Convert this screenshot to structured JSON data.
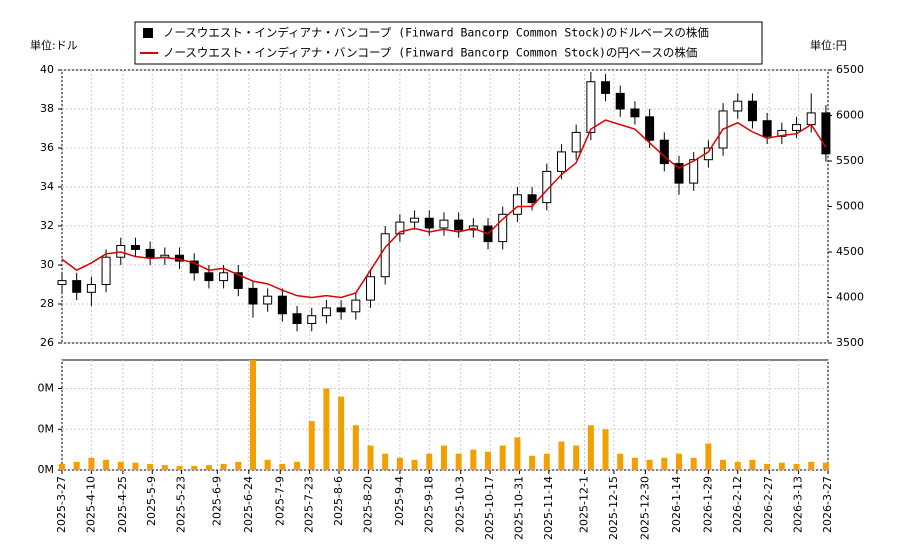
{
  "chart_data": [
    {
      "type": "candlestick",
      "name": "ノースウエスト・インディアナ・バンコープ (Finward Bancorp Common Stock)のドルベースの株価",
      "color": "#000000",
      "y_label": "単位:ドル",
      "y2_label": "単位:円",
      "x": [
        "2025-3-27",
        "2025-4-3",
        "2025-4-10",
        "2025-4-17",
        "2025-4-24",
        "2025-5-1",
        "2025-5-8",
        "2025-5-15",
        "2025-5-22",
        "2025-5-29",
        "2025-6-5",
        "2025-6-12",
        "2025-6-19",
        "2025-6-26",
        "2025-7-3",
        "2025-7-10",
        "2025-7-17",
        "2025-7-24",
        "2025-7-31",
        "2025-8-7",
        "2025-8-14",
        "2025-8-21",
        "2025-8-28",
        "2025-9-4",
        "2025-9-11",
        "2025-9-18",
        "2025-9-25",
        "2025-10-2",
        "2025-10-9",
        "2025-10-16",
        "2025-10-23",
        "2025-10-30",
        "2025-11-6",
        "2025-11-13",
        "2025-11-20",
        "2025-11-27",
        "2025-12-4",
        "2025-12-11",
        "2025-12-18",
        "2025-12-25",
        "2026-1-1",
        "2026-1-8",
        "2026-1-15",
        "2026-1-22",
        "2026-1-29",
        "2026-2-5",
        "2026-2-12",
        "2026-2-19",
        "2026-2-26",
        "2026-3-5",
        "2026-3-12",
        "2026-3-19",
        "2026-3-26"
      ],
      "open": [
        29.0,
        29.2,
        28.6,
        29.0,
        30.4,
        31.0,
        30.8,
        30.4,
        30.5,
        30.2,
        29.6,
        29.2,
        29.6,
        28.8,
        28.0,
        28.4,
        27.5,
        27.0,
        27.4,
        27.8,
        27.6,
        28.2,
        29.4,
        31.6,
        32.2,
        32.4,
        31.9,
        32.3,
        31.8,
        32.0,
        31.2,
        32.6,
        33.6,
        33.2,
        34.8,
        35.8,
        36.8,
        39.4,
        38.8,
        38.0,
        37.6,
        36.4,
        35.2,
        34.2,
        35.4,
        36.0,
        37.9,
        38.4,
        37.4,
        36.6,
        36.9,
        37.2,
        37.8
      ],
      "high": [
        29.6,
        29.6,
        29.4,
        30.8,
        31.4,
        31.4,
        31.2,
        30.9,
        30.9,
        30.6,
        30.0,
        30.0,
        30.0,
        29.2,
        28.8,
        28.8,
        27.9,
        27.8,
        28.2,
        28.2,
        28.6,
        29.8,
        32.0,
        32.6,
        32.8,
        32.8,
        32.7,
        32.7,
        32.4,
        32.4,
        33.0,
        34.0,
        34.0,
        35.2,
        36.2,
        37.2,
        39.9,
        39.8,
        39.2,
        38.4,
        38.0,
        36.8,
        35.6,
        35.8,
        36.4,
        38.3,
        38.8,
        38.8,
        37.8,
        37.3,
        37.6,
        38.8,
        38.2
      ],
      "low": [
        28.6,
        28.2,
        27.9,
        28.6,
        30.0,
        30.4,
        30.0,
        30.0,
        29.8,
        29.2,
        28.8,
        28.8,
        28.4,
        27.3,
        27.6,
        27.1,
        26.6,
        26.6,
        27.0,
        27.2,
        27.2,
        27.8,
        29.0,
        31.2,
        31.8,
        31.5,
        31.5,
        31.4,
        31.4,
        30.8,
        30.8,
        32.2,
        32.8,
        32.8,
        34.4,
        35.4,
        36.4,
        38.4,
        37.6,
        37.2,
        36.0,
        34.8,
        33.6,
        33.8,
        35.0,
        35.6,
        37.5,
        37.0,
        36.2,
        36.2,
        36.5,
        36.8,
        35.3
      ],
      "close": [
        29.2,
        28.6,
        29.0,
        30.4,
        31.0,
        30.8,
        30.4,
        30.5,
        30.2,
        29.6,
        29.2,
        29.6,
        28.8,
        28.0,
        28.4,
        27.5,
        27.0,
        27.4,
        27.8,
        27.6,
        28.2,
        29.4,
        31.6,
        32.2,
        32.4,
        31.9,
        32.3,
        31.8,
        32.0,
        31.2,
        32.6,
        33.6,
        33.2,
        34.8,
        35.8,
        36.8,
        39.4,
        38.8,
        38.0,
        37.6,
        36.4,
        35.2,
        34.2,
        35.4,
        36.0,
        37.9,
        38.4,
        37.4,
        36.6,
        36.9,
        37.2,
        37.8,
        35.7
      ],
      "series": [
        {
          "name": "ノースウエスト・インディアナ・バンコープ (Finward Bancorp Common Stock)の円ベースの株価",
          "color": "#dd0000",
          "axis": "y2",
          "values": [
            4420,
            4300,
            4380,
            4480,
            4500,
            4450,
            4430,
            4440,
            4420,
            4380,
            4300,
            4320,
            4250,
            4180,
            4150,
            4080,
            4020,
            4000,
            4020,
            4000,
            4050,
            4300,
            4550,
            4720,
            4760,
            4720,
            4750,
            4720,
            4760,
            4700,
            4860,
            5000,
            5000,
            5180,
            5350,
            5480,
            5850,
            5950,
            5900,
            5850,
            5700,
            5550,
            5420,
            5500,
            5600,
            5850,
            5920,
            5820,
            5750,
            5780,
            5800,
            5900,
            5650
          ]
        }
      ],
      "xlim": [
        "2025-3-27",
        "2026-3-27"
      ],
      "xticks": [
        "2025-3-27",
        "2025-4-10",
        "2025-4-25",
        "2025-5-9",
        "2025-5-23",
        "2025-6-9",
        "2025-6-24",
        "2025-7-9",
        "2025-7-23",
        "2025-8-6",
        "2025-8-20",
        "2025-9-4",
        "2025-9-18",
        "2025-10-3",
        "2025-10-17",
        "2025-10-31",
        "2025-11-14",
        "2025-12-1",
        "2025-12-15",
        "2025-12-30",
        "2026-1-14",
        "2026-1-29",
        "2026-2-12",
        "2026-2-27",
        "2026-3-13",
        "2026-3-27"
      ],
      "ylim": [
        26,
        40
      ],
      "yticks": [
        26,
        28,
        30,
        32,
        34,
        36,
        38,
        40
      ],
      "y2lim": [
        3500,
        6500
      ],
      "y2ticks": [
        3500,
        4000,
        4500,
        5000,
        5500,
        6000,
        6500
      ],
      "grid": true
    },
    {
      "type": "bar",
      "color": "#f0a000",
      "values": [
        15000,
        20000,
        30000,
        25000,
        20000,
        18000,
        15000,
        12000,
        10000,
        10000,
        12000,
        15000,
        20000,
        270000,
        25000,
        15000,
        20000,
        120000,
        200000,
        180000,
        110000,
        60000,
        40000,
        30000,
        25000,
        40000,
        60000,
        40000,
        50000,
        45000,
        60000,
        80000,
        35000,
        40000,
        70000,
        60000,
        110000,
        100000,
        40000,
        30000,
        25000,
        30000,
        40000,
        30000,
        65000,
        25000,
        20000,
        25000,
        15000,
        18000,
        15000,
        20000,
        18000
      ],
      "ylim": [
        0,
        270000
      ],
      "yticks": [
        {
          "value": 0,
          "label": "0M"
        },
        {
          "value": 100000,
          "label": "0M"
        },
        {
          "value": 200000,
          "label": "0M"
        }
      ],
      "grid": true
    }
  ]
}
